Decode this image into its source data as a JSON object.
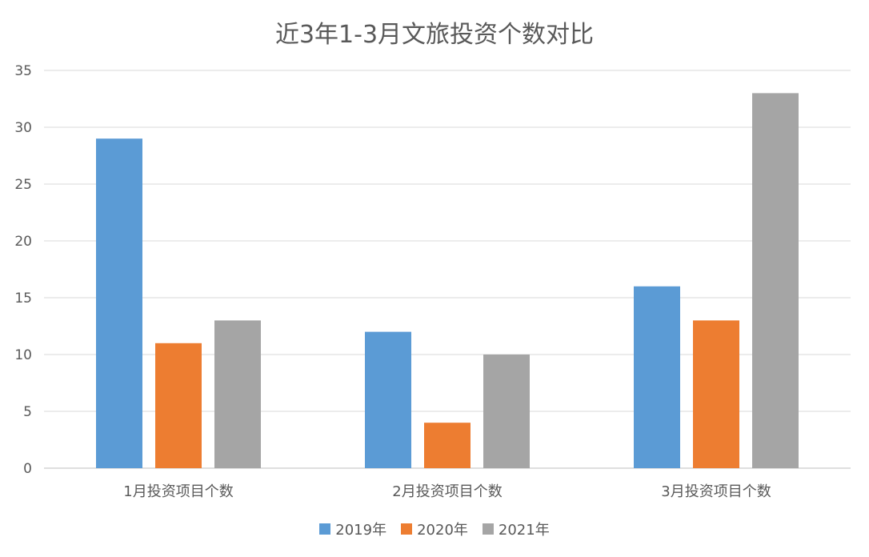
{
  "chart_data": {
    "type": "bar",
    "title": "近3年1-3月文旅投资个数对比",
    "categories": [
      "1月投资项目个数",
      "2月投资项目个数",
      "3月投资项目个数"
    ],
    "series": [
      {
        "name": "2019年",
        "color": "#5B9BD5",
        "values": [
          29,
          12,
          16
        ]
      },
      {
        "name": "2020年",
        "color": "#ED7D31",
        "values": [
          11,
          4,
          13
        ]
      },
      {
        "name": "2021年",
        "color": "#A5A5A5",
        "values": [
          13,
          10,
          33
        ]
      }
    ],
    "ylim": [
      0,
      35
    ],
    "yticks": [
      0,
      5,
      10,
      15,
      20,
      25,
      30,
      35
    ],
    "grid": true,
    "legend_position": "bottom"
  }
}
